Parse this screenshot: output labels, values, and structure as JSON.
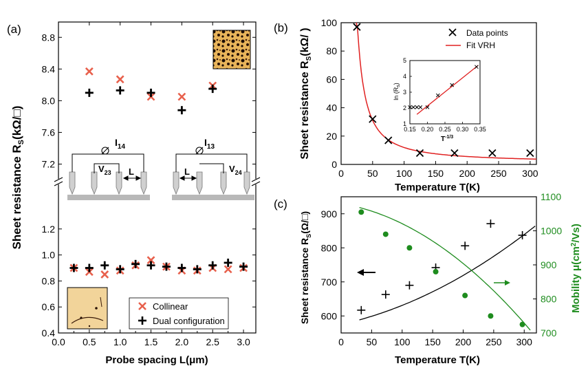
{
  "panels": {
    "a": "(a)",
    "b": "(b)",
    "c": "(c)"
  },
  "colors": {
    "collinear": "#e8604c",
    "dual": "#000000",
    "fit": "#e02020",
    "mobility": "#1e8c1e",
    "frame": "#000000"
  },
  "chart_data": [
    {
      "id": "a",
      "type": "scatter",
      "title": "",
      "xlabel": "Probe spacing L(μm)",
      "ylabel": "Sheet resistance R",
      "ylabel_sub": "S",
      "ylabel_unit": "(kΩ/□)",
      "xlim": [
        0.0,
        3.2
      ],
      "xticks": [
        "0.0",
        "0.5",
        "1.0",
        "1.5",
        "2.0",
        "2.5",
        "3.0"
      ],
      "upper_ylim": [
        7.1,
        8.95
      ],
      "upper_yticks": [
        "7.2",
        "7.6",
        "8.0",
        "8.4",
        "8.8"
      ],
      "lower_ylim": [
        0.4,
        1.4
      ],
      "lower_yticks": [
        "0.4",
        "0.6",
        "0.8",
        "1.0",
        "1.2"
      ],
      "legend_position": "bottom-right",
      "series": [
        {
          "name": "Collinear",
          "marker": "x",
          "upper": {
            "x": [
              0.5,
              1.0,
              1.5,
              2.0,
              2.5
            ],
            "y": [
              8.37,
              8.27,
              8.05,
              8.05,
              8.19
            ]
          },
          "lower": {
            "x": [
              0.25,
              0.5,
              0.75,
              1.0,
              1.25,
              1.5,
              1.75,
              2.0,
              2.25,
              2.5,
              2.75,
              3.0
            ],
            "y": [
              0.9,
              0.87,
              0.85,
              0.88,
              0.92,
              0.96,
              0.91,
              0.88,
              0.88,
              0.9,
              0.89,
              0.9
            ]
          }
        },
        {
          "name": "Dual configuration",
          "marker": "plus",
          "upper": {
            "x": [
              0.5,
              1.0,
              1.5,
              2.0,
              2.5
            ],
            "y": [
              8.1,
              8.13,
              8.1,
              7.88,
              8.15
            ]
          },
          "lower": {
            "x": [
              0.25,
              0.5,
              0.75,
              1.0,
              1.25,
              1.5,
              1.75,
              2.0,
              2.25,
              2.5,
              2.75,
              3.0
            ],
            "y": [
              0.9,
              0.9,
              0.92,
              0.89,
              0.93,
              0.92,
              0.91,
              0.9,
              0.89,
              0.92,
              0.94,
              0.91
            ]
          }
        }
      ],
      "annotations": {
        "current_left": "I",
        "current_left_sub": "14",
        "current_right": "I",
        "current_right_sub": "13",
        "voltage_left": "V",
        "voltage_left_sub": "23",
        "voltage_right": "V",
        "voltage_right_sub": "24",
        "spacing_left": "L",
        "spacing_right": "L",
        "current_symbol": "⌀"
      }
    },
    {
      "id": "b",
      "type": "scatter",
      "title": "",
      "xlabel": "Temperature T(K)",
      "ylabel": "Sheet resistance R",
      "ylabel_sub": "S",
      "ylabel_unit": "(kΩ/ )",
      "xlim": [
        0,
        310
      ],
      "ylim": [
        0,
        100
      ],
      "xticks": [
        0,
        50,
        100,
        150,
        200,
        250,
        300
      ],
      "yticks": [
        0,
        20,
        40,
        60,
        80,
        100
      ],
      "legend_position": "top-right",
      "series": [
        {
          "name": "Data points",
          "marker": "x",
          "x": [
            25,
            50,
            75,
            125,
            180,
            240,
            300
          ],
          "y": [
            97,
            32,
            17,
            8,
            8,
            8,
            8
          ]
        },
        {
          "name": "Fit VRH",
          "type": "line",
          "model": "R = A*exp((T0/T)^(1/3))",
          "params": {
            "A": 0.3,
            "T0": 5000
          }
        }
      ],
      "inset": {
        "type": "scatter",
        "xlabel": "T",
        "xlabel_sup": "-1/3",
        "ylabel": "ln (R",
        "ylabel_sub": "s",
        "ylabel_close": ")",
        "xlim": [
          0.15,
          0.35
        ],
        "ylim": [
          1,
          5
        ],
        "xticks": [
          "0.15",
          "0.20",
          "0.25",
          "0.30",
          "0.35"
        ],
        "yticks": [
          "1",
          "2",
          "3",
          "4",
          "5"
        ],
        "points": {
          "x": [
            0.15,
            0.16,
            0.17,
            0.18,
            0.2,
            0.23,
            0.27,
            0.34
          ],
          "y": [
            2.05,
            2.05,
            2.05,
            2.05,
            2.05,
            2.8,
            3.45,
            4.6
          ]
        },
        "fit_line": {
          "x": [
            0.17,
            0.345
          ],
          "y": [
            1.6,
            4.7
          ]
        }
      }
    },
    {
      "id": "c",
      "type": "scatter",
      "title": "",
      "xlabel": "Temperature T(K)",
      "ylabel": "Sheet resistance R",
      "ylabel_sub": "S",
      "ylabel_unit": "(Ω/□)",
      "ylabel_right": "Mobility μ(cm",
      "ylabel_right_sup": "2",
      "ylabel_right_end": "/Vs)",
      "xlim": [
        0,
        320
      ],
      "ylim": [
        550,
        950
      ],
      "ylim_right": [
        700,
        1100
      ],
      "xticks": [
        0,
        50,
        100,
        150,
        200,
        250,
        300
      ],
      "yticks": [
        600,
        700,
        800,
        900
      ],
      "yticks_right": [
        700,
        800,
        900,
        1000,
        1100
      ],
      "series": [
        {
          "name": "Sheet resistance",
          "axis": "left",
          "marker": "plus",
          "x": [
            33,
            73,
            112,
            155,
            203,
            245,
            297
          ],
          "y": [
            617,
            663,
            690,
            742,
            806,
            871,
            837
          ],
          "fit": {
            "type": "line",
            "model": "R = 575 + 0.4T + 0.0016T^2"
          }
        },
        {
          "name": "Mobility",
          "axis": "right",
          "marker": "circle",
          "x": [
            33,
            73,
            112,
            155,
            203,
            245,
            297
          ],
          "y": [
            1055,
            990,
            950,
            880,
            810,
            750,
            725
          ],
          "fit": {
            "type": "line",
            "model": "mu = 1080 - 0.3T - 0.0029T^2"
          }
        }
      ]
    }
  ]
}
